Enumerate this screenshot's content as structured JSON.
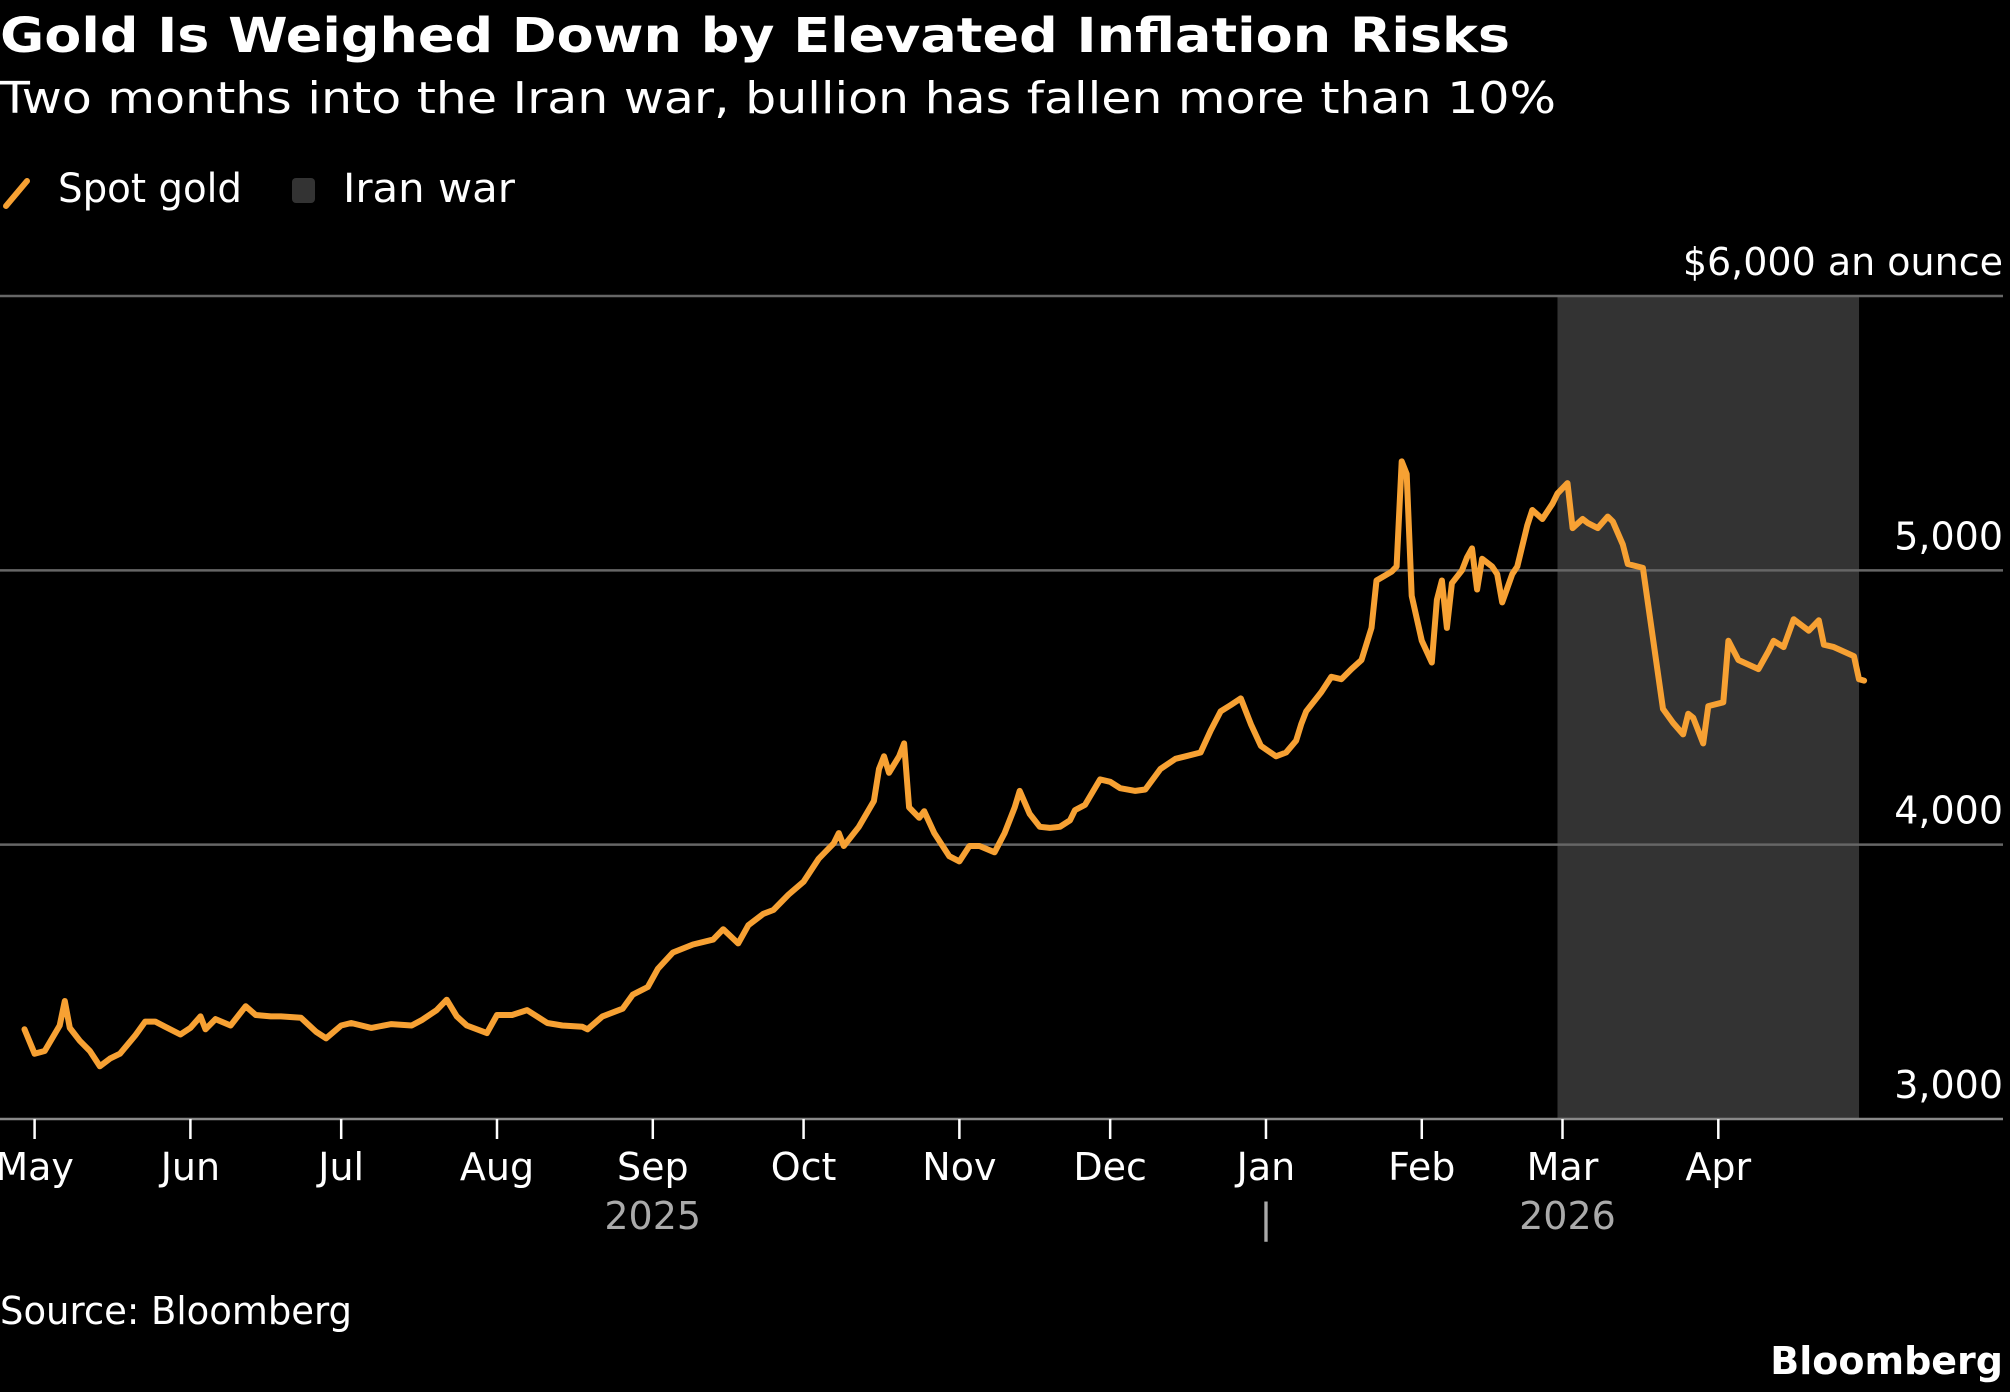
{
  "header": {
    "title": "Gold Is Weighed Down by Elevated Inflation Risks",
    "subtitle": "Two months into the Iran war, bullion has fallen more than 10%"
  },
  "legend": {
    "series_label": "Spot gold",
    "shading_label": "Iran war"
  },
  "footer": {
    "source": "Source: Bloomberg",
    "brand": "Bloomberg"
  },
  "colors": {
    "line": "#f7a133",
    "shading": "#333333",
    "grid": "#666666",
    "year_label": "#aaaaaa"
  },
  "chart_data": {
    "type": "line",
    "title": "Gold Is Weighed Down by Elevated Inflation Risks",
    "subtitle": "Two months into the Iran war, bullion has fallen more than 10%",
    "xlabel": "",
    "ylabel": "$ an ounce",
    "x_unit": "days since 2025-05-01",
    "ylim": [
      3000,
      6000
    ],
    "y_ticks": [
      {
        "value": 6000,
        "label": "$6,000 an ounce"
      },
      {
        "value": 5000,
        "label": "5,000"
      },
      {
        "value": 4000,
        "label": "4,000"
      },
      {
        "value": 3000,
        "label": "3,000"
      }
    ],
    "x_ticks": [
      {
        "day": 0,
        "label": "May"
      },
      {
        "day": 31,
        "label": "Jun"
      },
      {
        "day": 61,
        "label": "Jul"
      },
      {
        "day": 92,
        "label": "Aug"
      },
      {
        "day": 123,
        "label": "Sep"
      },
      {
        "day": 153,
        "label": "Oct"
      },
      {
        "day": 184,
        "label": "Nov"
      },
      {
        "day": 214,
        "label": "Dec"
      },
      {
        "day": 245,
        "label": "Jan"
      },
      {
        "day": 276,
        "label": "Feb"
      },
      {
        "day": 304,
        "label": "Mar"
      },
      {
        "day": 335,
        "label": "Apr"
      }
    ],
    "year_labels": [
      {
        "day": 121,
        "label": "2025"
      },
      {
        "day": 303,
        "label": "2026"
      }
    ],
    "year_separator_day": 245,
    "year_separator_label": "|",
    "shaded_regions": [
      {
        "name": "Iran war",
        "start_day": 303,
        "end_day": 363
      }
    ],
    "grid": true,
    "legend_position": "top-left",
    "series": [
      {
        "name": "Spot gold",
        "points": [
          [
            -2,
            3327
          ],
          [
            0,
            3238
          ],
          [
            2,
            3248
          ],
          [
            5,
            3341
          ],
          [
            6,
            3430
          ],
          [
            7,
            3332
          ],
          [
            9,
            3285
          ],
          [
            11,
            3248
          ],
          [
            13,
            3192
          ],
          [
            15,
            3220
          ],
          [
            17,
            3238
          ],
          [
            20,
            3304
          ],
          [
            22,
            3355
          ],
          [
            24,
            3355
          ],
          [
            26,
            3336
          ],
          [
            29,
            3308
          ],
          [
            31,
            3332
          ],
          [
            33,
            3374
          ],
          [
            34,
            3327
          ],
          [
            36,
            3364
          ],
          [
            39,
            3341
          ],
          [
            42,
            3411
          ],
          [
            44,
            3379
          ],
          [
            47,
            3374
          ],
          [
            49,
            3374
          ],
          [
            53,
            3369
          ],
          [
            56,
            3318
          ],
          [
            58,
            3294
          ],
          [
            61,
            3341
          ],
          [
            63,
            3350
          ],
          [
            67,
            3332
          ],
          [
            71,
            3346
          ],
          [
            75,
            3341
          ],
          [
            77,
            3360
          ],
          [
            80,
            3397
          ],
          [
            82,
            3435
          ],
          [
            84,
            3374
          ],
          [
            86,
            3341
          ],
          [
            90,
            3313
          ],
          [
            92,
            3379
          ],
          [
            95,
            3379
          ],
          [
            98,
            3397
          ],
          [
            102,
            3350
          ],
          [
            105,
            3341
          ],
          [
            109,
            3336
          ],
          [
            110,
            3327
          ],
          [
            113,
            3374
          ],
          [
            117,
            3402
          ],
          [
            119,
            3453
          ],
          [
            122,
            3481
          ],
          [
            124,
            3547
          ],
          [
            127,
            3607
          ],
          [
            131,
            3636
          ],
          [
            135,
            3654
          ],
          [
            137,
            3692
          ],
          [
            140,
            3640
          ],
          [
            142,
            3706
          ],
          [
            145,
            3748
          ],
          [
            147,
            3762
          ],
          [
            150,
            3818
          ],
          [
            153,
            3865
          ],
          [
            156,
            3949
          ],
          [
            159,
            4005
          ],
          [
            160,
            4042
          ],
          [
            161,
            3995
          ],
          [
            164,
            4065
          ],
          [
            167,
            4159
          ],
          [
            168,
            4276
          ],
          [
            169,
            4322
          ],
          [
            170,
            4262
          ],
          [
            172,
            4322
          ],
          [
            173,
            4369
          ],
          [
            174,
            4136
          ],
          [
            176,
            4098
          ],
          [
            177,
            4122
          ],
          [
            179,
            4042
          ],
          [
            182,
            3958
          ],
          [
            184,
            3939
          ],
          [
            186,
            3995
          ],
          [
            188,
            3995
          ],
          [
            191,
            3972
          ],
          [
            193,
            4042
          ],
          [
            195,
            4136
          ],
          [
            196,
            4196
          ],
          [
            198,
            4112
          ],
          [
            200,
            4065
          ],
          [
            202,
            4061
          ],
          [
            204,
            4065
          ],
          [
            206,
            4089
          ],
          [
            207,
            4126
          ],
          [
            209,
            4145
          ],
          [
            212,
            4238
          ],
          [
            214,
            4229
          ],
          [
            216,
            4206
          ],
          [
            219,
            4196
          ],
          [
            221,
            4201
          ],
          [
            224,
            4276
          ],
          [
            227,
            4313
          ],
          [
            229,
            4322
          ],
          [
            232,
            4336
          ],
          [
            234,
            4416
          ],
          [
            236,
            4486
          ],
          [
            238,
            4509
          ],
          [
            240,
            4533
          ],
          [
            242,
            4439
          ],
          [
            244,
            4360
          ],
          [
            247,
            4322
          ],
          [
            249,
            4336
          ],
          [
            251,
            4379
          ],
          [
            252,
            4439
          ],
          [
            253,
            4486
          ],
          [
            256,
            4556
          ],
          [
            258,
            4612
          ],
          [
            260,
            4603
          ],
          [
            262,
            4640
          ],
          [
            264,
            4673
          ],
          [
            266,
            4790
          ],
          [
            267,
            4963
          ],
          [
            270,
            4995
          ],
          [
            271,
            5014
          ],
          [
            272,
            5397
          ],
          [
            273,
            5351
          ],
          [
            274,
            4907
          ],
          [
            276,
            4743
          ],
          [
            278,
            4664
          ],
          [
            279,
            4893
          ],
          [
            280,
            4963
          ],
          [
            281,
            4790
          ],
          [
            282,
            4953
          ],
          [
            284,
            5000
          ],
          [
            285,
            5047
          ],
          [
            286,
            5080
          ],
          [
            287,
            4930
          ],
          [
            288,
            5042
          ],
          [
            290,
            5014
          ],
          [
            291,
            4986
          ],
          [
            292,
            4883
          ],
          [
            294,
            4986
          ],
          [
            295,
            5014
          ],
          [
            297,
            5164
          ],
          [
            298,
            5220
          ],
          [
            300,
            5187
          ],
          [
            302,
            5243
          ],
          [
            303,
            5280
          ],
          [
            305,
            5318
          ],
          [
            306,
            5154
          ],
          [
            308,
            5187
          ],
          [
            309,
            5173
          ],
          [
            311,
            5154
          ],
          [
            313,
            5196
          ],
          [
            314,
            5178
          ],
          [
            316,
            5094
          ],
          [
            317,
            5023
          ],
          [
            320,
            5009
          ],
          [
            324,
            4495
          ],
          [
            326,
            4444
          ],
          [
            328,
            4402
          ],
          [
            329,
            4477
          ],
          [
            330,
            4463
          ],
          [
            332,
            4369
          ],
          [
            333,
            4505
          ],
          [
            336,
            4519
          ],
          [
            337,
            4743
          ],
          [
            339,
            4673
          ],
          [
            343,
            4640
          ],
          [
            345,
            4706
          ],
          [
            346,
            4743
          ],
          [
            348,
            4720
          ],
          [
            350,
            4822
          ],
          [
            353,
            4780
          ],
          [
            355,
            4818
          ],
          [
            356,
            4729
          ],
          [
            358,
            4720
          ],
          [
            362,
            4687
          ],
          [
            363,
            4603
          ],
          [
            364,
            4598
          ]
        ]
      }
    ]
  }
}
